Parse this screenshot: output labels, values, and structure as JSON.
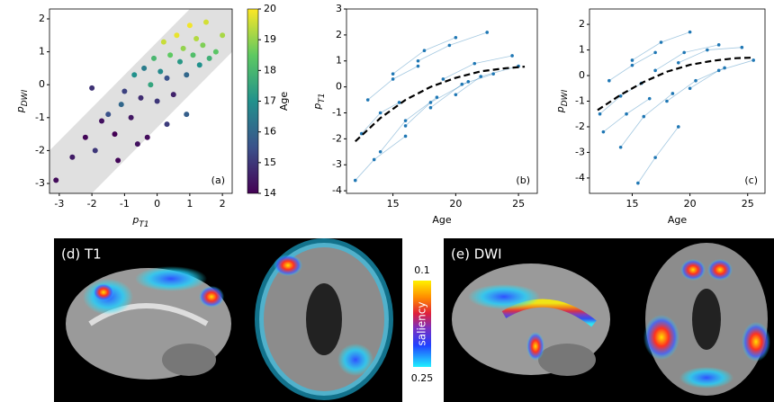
{
  "chart_data": [
    {
      "type": "scatter",
      "panel_label": "(a)",
      "x_label": {
        "base": "p",
        "sub": "T1"
      },
      "y_label": {
        "base": "p",
        "sub": "DWI"
      },
      "xlim": [
        -3.3,
        2.3
      ],
      "ylim": [
        -3.3,
        2.3
      ],
      "xticks": [
        -3,
        -2,
        -1,
        0,
        1,
        2
      ],
      "yticks": [
        -3,
        -2,
        -1,
        0,
        1,
        2
      ],
      "x": [
        -3.1,
        -2.6,
        -2.2,
        -1.9,
        -1.7,
        -1.5,
        -1.3,
        -1.1,
        -1.0,
        -0.8,
        -0.7,
        -0.5,
        -0.4,
        -0.3,
        -0.2,
        -0.1,
        0.0,
        0.1,
        0.2,
        0.3,
        0.4,
        0.5,
        0.6,
        0.7,
        0.8,
        0.9,
        1.0,
        1.1,
        1.2,
        1.3,
        1.4,
        1.5,
        1.6,
        1.8,
        2.0,
        -1.2,
        -0.6,
        0.3,
        0.9,
        -2.0
      ],
      "y": [
        -2.9,
        -2.2,
        -1.6,
        -2.0,
        -1.1,
        -0.9,
        -1.5,
        -0.6,
        -0.2,
        -1.0,
        0.3,
        -0.4,
        0.5,
        -1.6,
        0.0,
        0.8,
        -0.5,
        0.4,
        1.3,
        0.2,
        0.9,
        -0.3,
        1.5,
        0.7,
        1.1,
        0.3,
        1.8,
        0.9,
        1.4,
        0.6,
        1.2,
        1.9,
        0.8,
        1.0,
        1.5,
        -2.3,
        -1.8,
        -1.2,
        -0.9,
        -0.1
      ],
      "c": [
        14.2,
        14.5,
        14.1,
        15.0,
        14.3,
        15.5,
        14.0,
        16.0,
        15.2,
        14.4,
        17.0,
        14.8,
        16.5,
        14.2,
        17.5,
        18.0,
        15.0,
        16.8,
        19.5,
        15.5,
        18.5,
        14.6,
        19.8,
        17.2,
        19.0,
        16.0,
        19.9,
        18.2,
        19.3,
        17.0,
        18.8,
        19.6,
        17.8,
        18.4,
        19.2,
        14.1,
        14.3,
        15.1,
        15.8,
        14.9
      ],
      "colorbar": {
        "label": "Age",
        "clim": [
          14,
          20
        ],
        "ticks": [
          14,
          15,
          16,
          17,
          18,
          19,
          20
        ]
      }
    },
    {
      "type": "trajectory",
      "panel_label": "(b)",
      "color": "#1f77b4",
      "x_label": "Age",
      "y_label": {
        "base": "p",
        "sub": "T1"
      },
      "xlim": [
        11.3,
        26.5
      ],
      "ylim": [
        -4.1,
        3
      ],
      "xticks": [
        15,
        20,
        25
      ],
      "yticks": [
        -4,
        -3,
        -2,
        -1,
        0,
        1,
        2,
        3
      ],
      "series": [
        {
          "x": [
            12.5,
            14.0,
            15.5
          ],
          "y": [
            -1.8,
            -1.0,
            -0.6
          ]
        },
        {
          "x": [
            13.0,
            15.0,
            17.0
          ],
          "y": [
            -0.5,
            0.3,
            0.8
          ]
        },
        {
          "x": [
            14.0,
            16.0,
            18.5
          ],
          "y": [
            -2.5,
            -1.3,
            -0.4
          ]
        },
        {
          "x": [
            15.0,
            17.5,
            20.0
          ],
          "y": [
            0.5,
            1.4,
            1.9
          ]
        },
        {
          "x": [
            16.0,
            18.0,
            21.0
          ],
          "y": [
            -1.5,
            -0.6,
            0.2
          ]
        },
        {
          "x": [
            17.0,
            19.5,
            22.5
          ],
          "y": [
            1.0,
            1.6,
            2.1
          ]
        },
        {
          "x": [
            18.0,
            20.5,
            23.0
          ],
          "y": [
            -0.8,
            0.1,
            0.5
          ]
        },
        {
          "x": [
            19.0,
            21.5,
            24.5
          ],
          "y": [
            0.3,
            0.9,
            1.2
          ]
        },
        {
          "x": [
            12.0,
            13.5,
            16.0
          ],
          "y": [
            -3.6,
            -2.8,
            -1.9
          ]
        },
        {
          "x": [
            20.0,
            22.0,
            25.0
          ],
          "y": [
            -0.3,
            0.4,
            0.8
          ]
        }
      ],
      "fit": {
        "x": [
          12,
          14,
          16,
          18,
          20,
          22,
          24,
          25.5
        ],
        "y": [
          -2.1,
          -1.2,
          -0.5,
          0.0,
          0.35,
          0.6,
          0.72,
          0.78
        ]
      }
    },
    {
      "type": "trajectory",
      "panel_label": "(c)",
      "color": "#1f77b4",
      "x_label": "Age",
      "y_label": {
        "base": "p",
        "sub": "DWI"
      },
      "xlim": [
        11.3,
        26.5
      ],
      "ylim": [
        -4.6,
        2.6
      ],
      "xticks": [
        15,
        20,
        25
      ],
      "yticks": [
        -4,
        -3,
        -2,
        -1,
        0,
        1,
        2
      ],
      "series": [
        {
          "x": [
            12.2,
            14.0,
            15.8
          ],
          "y": [
            -1.5,
            -0.8,
            -0.3
          ]
        },
        {
          "x": [
            13.0,
            15.0,
            17.0
          ],
          "y": [
            -0.2,
            0.4,
            0.9
          ]
        },
        {
          "x": [
            14.0,
            16.0,
            18.5
          ],
          "y": [
            -2.8,
            -1.6,
            -0.7
          ]
        },
        {
          "x": [
            15.0,
            17.5,
            20.0
          ],
          "y": [
            0.6,
            1.3,
            1.7
          ]
        },
        {
          "x": [
            15.5,
            17.0,
            19.0
          ],
          "y": [
            -4.2,
            -3.2,
            -2.0
          ]
        },
        {
          "x": [
            17.0,
            19.5,
            22.5
          ],
          "y": [
            0.2,
            0.9,
            1.2
          ]
        },
        {
          "x": [
            18.0,
            20.5,
            23.0
          ],
          "y": [
            -1.0,
            -0.2,
            0.3
          ]
        },
        {
          "x": [
            19.0,
            21.5,
            24.5
          ],
          "y": [
            0.5,
            1.0,
            1.1
          ]
        },
        {
          "x": [
            12.5,
            14.5,
            16.5
          ],
          "y": [
            -2.2,
            -1.5,
            -0.9
          ]
        },
        {
          "x": [
            20.0,
            22.5,
            25.5
          ],
          "y": [
            -0.5,
            0.2,
            0.6
          ]
        }
      ],
      "fit": {
        "x": [
          12,
          14,
          16,
          18,
          20,
          22,
          24,
          25.5
        ],
        "y": [
          -1.35,
          -0.75,
          -0.25,
          0.15,
          0.42,
          0.58,
          0.68,
          0.7
        ]
      }
    }
  ],
  "image_panels": [
    {
      "label": "(d) T1"
    },
    {
      "label": "(e) DWI"
    }
  ],
  "saliency_colorbar": {
    "label": "saliency",
    "clim": [
      0.1,
      0.25
    ],
    "ticks": [
      0.1,
      0.25
    ]
  }
}
